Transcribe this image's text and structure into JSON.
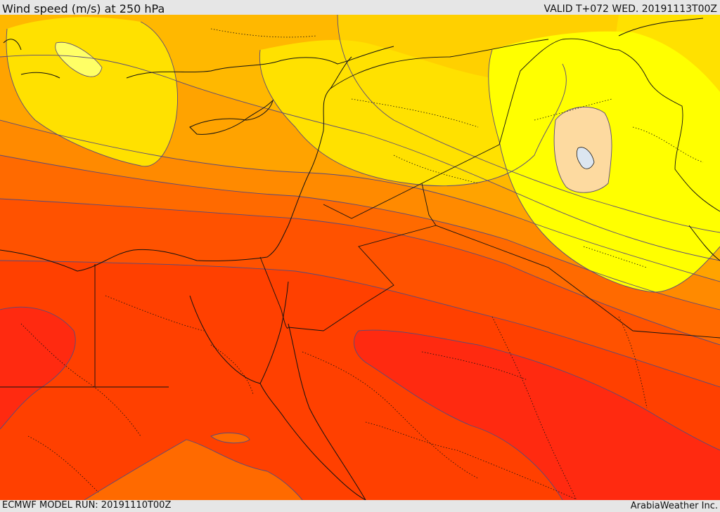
{
  "header": {
    "title": "Wind speed (m/s) at 250 hPa",
    "valid": "VALID T+072 WED. 20191113T00Z"
  },
  "footer": {
    "model_run": "ECMWF MODEL RUN: 20191110T00Z",
    "credit": "ArabiaWeather Inc."
  },
  "map": {
    "colors": {
      "band_red": "#ff2a10",
      "band_red_orange": "#ff4000",
      "band_orange_dark": "#ff5200",
      "band_orange": "#ff6a00",
      "band_orange_light": "#ff8a00",
      "band_amber": "#ffa300",
      "band_amber_light": "#ffb800",
      "band_gold": "#ffd000",
      "band_yellow": "#ffe100",
      "band_bright_yellow": "#ffff00",
      "band_pale": "#fddaa0",
      "lake": "#dce6f0",
      "contour": "#5a4a7a",
      "border": "#111111"
    }
  }
}
